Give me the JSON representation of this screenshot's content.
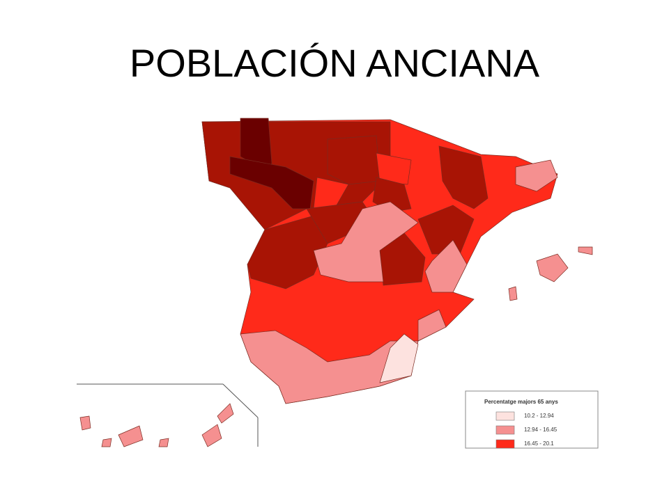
{
  "title": "POBLACIÓN ANCIANA",
  "legend": {
    "title": "Percentatge  majors 65 anys",
    "items": [
      {
        "label": "10.2 - 12.94",
        "color": "#fde2df"
      },
      {
        "label": "12.94 - 16.45",
        "color": "#f59090"
      },
      {
        "label": "16.45 - 20.1",
        "color": "#ff2a1a"
      }
    ]
  }
}
